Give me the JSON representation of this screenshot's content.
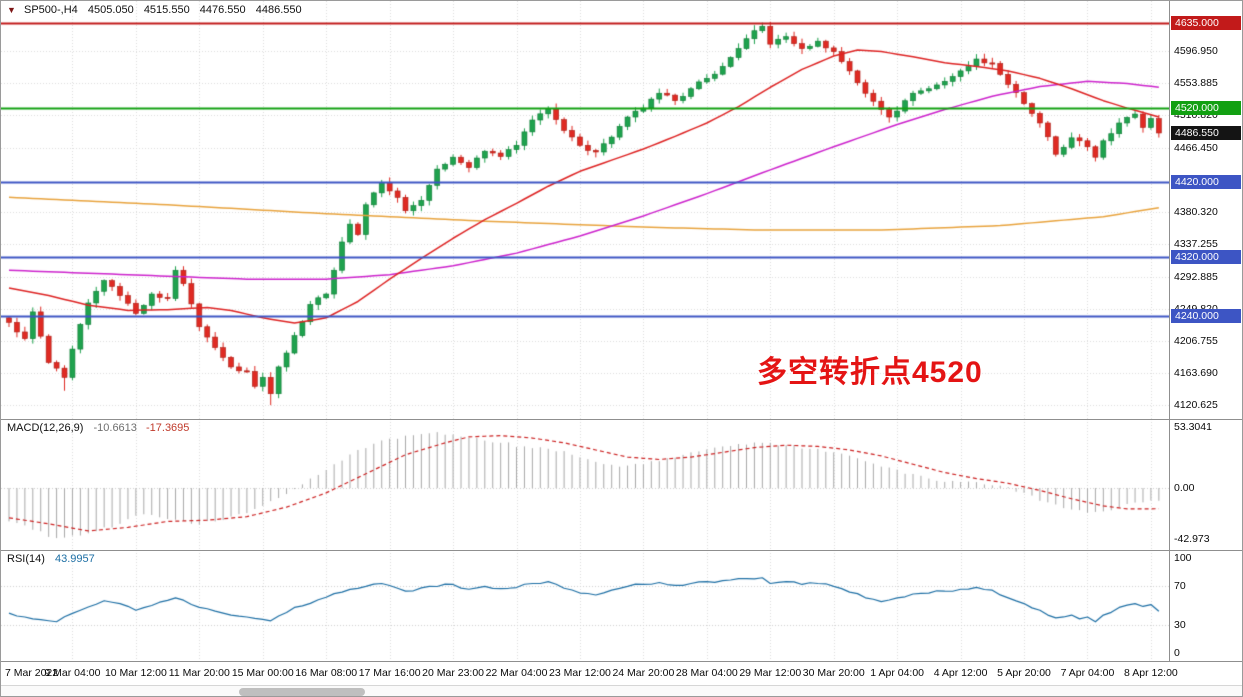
{
  "header": {
    "collapse_icon": "▼",
    "symbol": "SP500-,H4",
    "open": "4505.050",
    "high": "4515.550",
    "low": "4476.550",
    "close": "4486.550"
  },
  "time_axis": {
    "labels": [
      "7 Mar 2022",
      "9 Mar 04:00",
      "10 Mar 12:00",
      "11 Mar 20:00",
      "15 Mar 00:00",
      "16 Mar 08:00",
      "17 Mar 16:00",
      "20 Mar 23:00",
      "22 Mar 04:00",
      "23 Mar 12:00",
      "24 Mar 20:00",
      "28 Mar 04:00",
      "29 Mar 12:00",
      "30 Mar 20:00",
      "1 Apr 04:00",
      "4 Apr 12:00",
      "5 Apr 20:00",
      "7 Apr 04:00",
      "8 Apr 12:00"
    ],
    "bars_per_label": 8
  },
  "chart_data": [
    {
      "type": "candlestick",
      "title": "SP500-,H4",
      "timeframe": "H4",
      "n_bars": 146,
      "ylim": [
        4102,
        4664
      ],
      "y_ticks": [
        4596.95,
        4553.885,
        4510.82,
        4466.45,
        4380.32,
        4337.255,
        4292.885,
        4249.82,
        4206.755,
        4163.69,
        4120.625
      ],
      "price_badges": [
        {
          "value": 4635.0,
          "color": "#c21a1a",
          "line": true,
          "current": false
        },
        {
          "value": 4520.0,
          "color": "#12a012",
          "line": true,
          "current": false
        },
        {
          "value": 4486.55,
          "color": "#141414",
          "line": false,
          "current": true
        },
        {
          "value": 4420.0,
          "color": "#3d55c4",
          "line": true,
          "current": false
        },
        {
          "value": 4320.0,
          "color": "#3d55c4",
          "line": true,
          "current": false
        },
        {
          "value": 4240.0,
          "color": "#3d55c4",
          "line": true,
          "current": false
        }
      ],
      "last_price": 4486.55,
      "colors": {
        "up": "#1fa24e",
        "down": "#df2a23",
        "up_edge": "#0e7a34",
        "down_edge": "#a81f17"
      },
      "close_anchors": [
        [
          0,
          4232
        ],
        [
          2,
          4210
        ],
        [
          3,
          4246
        ],
        [
          5,
          4178
        ],
        [
          7,
          4158
        ],
        [
          8,
          4196
        ],
        [
          10,
          4258
        ],
        [
          12,
          4288
        ],
        [
          14,
          4268
        ],
        [
          16,
          4244
        ],
        [
          18,
          4270
        ],
        [
          20,
          4264
        ],
        [
          21,
          4302
        ],
        [
          22,
          4284
        ],
        [
          24,
          4226
        ],
        [
          26,
          4198
        ],
        [
          28,
          4172
        ],
        [
          30,
          4166
        ],
        [
          31,
          4146
        ],
        [
          32,
          4158
        ],
        [
          33,
          4136
        ],
        [
          34,
          4172
        ],
        [
          36,
          4214
        ],
        [
          38,
          4256
        ],
        [
          40,
          4270
        ],
        [
          41,
          4302
        ],
        [
          42,
          4340
        ],
        [
          43,
          4364
        ],
        [
          44,
          4350
        ],
        [
          45,
          4390
        ],
        [
          46,
          4406
        ],
        [
          47,
          4420
        ],
        [
          49,
          4400
        ],
        [
          50,
          4382
        ],
        [
          52,
          4396
        ],
        [
          54,
          4438
        ],
        [
          56,
          4454
        ],
        [
          58,
          4440
        ],
        [
          60,
          4462
        ],
        [
          62,
          4455
        ],
        [
          64,
          4470
        ],
        [
          66,
          4504
        ],
        [
          68,
          4519
        ],
        [
          70,
          4490
        ],
        [
          72,
          4470
        ],
        [
          74,
          4461
        ],
        [
          76,
          4481
        ],
        [
          78,
          4508
        ],
        [
          80,
          4520
        ],
        [
          82,
          4540
        ],
        [
          84,
          4530
        ],
        [
          86,
          4546
        ],
        [
          88,
          4560
        ],
        [
          90,
          4576
        ],
        [
          92,
          4600
        ],
        [
          94,
          4624
        ],
        [
          95,
          4630
        ],
        [
          96,
          4606
        ],
        [
          98,
          4616
        ],
        [
          100,
          4600
        ],
        [
          102,
          4610
        ],
        [
          104,
          4596
        ],
        [
          106,
          4570
        ],
        [
          108,
          4540
        ],
        [
          110,
          4518
        ],
        [
          111,
          4508
        ],
        [
          112,
          4516
        ],
        [
          114,
          4540
        ],
        [
          116,
          4546
        ],
        [
          118,
          4556
        ],
        [
          120,
          4570
        ],
        [
          122,
          4586
        ],
        [
          124,
          4580
        ],
        [
          126,
          4552
        ],
        [
          128,
          4526
        ],
        [
          130,
          4500
        ],
        [
          132,
          4458
        ],
        [
          134,
          4480
        ],
        [
          136,
          4468
        ],
        [
          137,
          4454
        ],
        [
          138,
          4476
        ],
        [
          140,
          4500
        ],
        [
          142,
          4512
        ],
        [
          143,
          4494
        ],
        [
          144,
          4506
        ],
        [
          145,
          4486.55
        ]
      ],
      "wick_overrides": {
        "7": {
          "low": 4140
        },
        "33": {
          "low": 4120.6
        },
        "95": {
          "high": 4635
        }
      },
      "moving_averages": [
        {
          "name": "ma-slow",
          "color": "#e8a33d",
          "anchors": [
            [
              0,
              4400
            ],
            [
              20,
              4390
            ],
            [
              40,
              4378
            ],
            [
              60,
              4368
            ],
            [
              80,
              4360
            ],
            [
              95,
              4356
            ],
            [
              110,
              4356
            ],
            [
              125,
              4362
            ],
            [
              138,
              4374
            ],
            [
              145,
              4386
            ]
          ]
        },
        {
          "name": "ma-medium",
          "color": "#cc22cc",
          "anchors": [
            [
              0,
              4302
            ],
            [
              15,
              4296
            ],
            [
              30,
              4290
            ],
            [
              40,
              4290
            ],
            [
              48,
              4296
            ],
            [
              56,
              4308
            ],
            [
              64,
              4325
            ],
            [
              72,
              4348
            ],
            [
              80,
              4375
            ],
            [
              88,
              4405
            ],
            [
              96,
              4437
            ],
            [
              104,
              4468
            ],
            [
              112,
              4498
            ],
            [
              118,
              4518
            ],
            [
              124,
              4536
            ],
            [
              130,
              4549
            ],
            [
              136,
              4556
            ],
            [
              141,
              4553
            ],
            [
              145,
              4548
            ]
          ]
        },
        {
          "name": "ma-fast",
          "color": "#dd2222",
          "anchors": [
            [
              0,
              4278
            ],
            [
              5,
              4268
            ],
            [
              10,
              4255
            ],
            [
              15,
              4248
            ],
            [
              20,
              4249
            ],
            [
              25,
              4252
            ],
            [
              28,
              4248
            ],
            [
              32,
              4238
            ],
            [
              36,
              4231
            ],
            [
              40,
              4238
            ],
            [
              44,
              4260
            ],
            [
              48,
              4290
            ],
            [
              52,
              4318
            ],
            [
              56,
              4345
            ],
            [
              60,
              4370
            ],
            [
              64,
              4392
            ],
            [
              68,
              4415
            ],
            [
              72,
              4435
            ],
            [
              76,
              4450
            ],
            [
              80,
              4465
            ],
            [
              84,
              4482
            ],
            [
              88,
              4500
            ],
            [
              92,
              4522
            ],
            [
              96,
              4548
            ],
            [
              100,
              4572
            ],
            [
              104,
              4590
            ],
            [
              107,
              4598
            ],
            [
              110,
              4596
            ],
            [
              114,
              4589
            ],
            [
              118,
              4581
            ],
            [
              122,
              4576
            ],
            [
              126,
              4570
            ],
            [
              130,
              4560
            ],
            [
              134,
              4546
            ],
            [
              138,
              4530
            ],
            [
              141,
              4520
            ],
            [
              145,
              4508
            ]
          ]
        }
      ],
      "annotation": {
        "text": "多空转折点4520",
        "color": "#e41414"
      }
    },
    {
      "type": "macd",
      "label": "MACD(12,26,9)",
      "values_text": {
        "main": "-10.6613",
        "signal": "-17.3695"
      },
      "ylim": [
        -52,
        58
      ],
      "axis_labels": [
        "53.3041",
        "0.00",
        "-42.973"
      ],
      "colors": {
        "histogram": "#a8a8a8",
        "signal": "#cc2222"
      },
      "histogram_anchors": [
        [
          0,
          -28
        ],
        [
          3,
          -35
        ],
        [
          6,
          -42
        ],
        [
          10,
          -38
        ],
        [
          14,
          -30
        ],
        [
          17,
          -22
        ],
        [
          20,
          -26
        ],
        [
          23,
          -30
        ],
        [
          26,
          -28
        ],
        [
          29,
          -22
        ],
        [
          32,
          -15
        ],
        [
          35,
          -5
        ],
        [
          38,
          8
        ],
        [
          41,
          20
        ],
        [
          44,
          32
        ],
        [
          47,
          40
        ],
        [
          50,
          44
        ],
        [
          53,
          46
        ],
        [
          56,
          45
        ],
        [
          59,
          42
        ],
        [
          62,
          38
        ],
        [
          65,
          35
        ],
        [
          68,
          33
        ],
        [
          71,
          28
        ],
        [
          74,
          22
        ],
        [
          77,
          18
        ],
        [
          80,
          20
        ],
        [
          83,
          25
        ],
        [
          86,
          30
        ],
        [
          89,
          34
        ],
        [
          92,
          37
        ],
        [
          95,
          38
        ],
        [
          98,
          36
        ],
        [
          101,
          33
        ],
        [
          104,
          30
        ],
        [
          107,
          25
        ],
        [
          110,
          18
        ],
        [
          113,
          12
        ],
        [
          116,
          8
        ],
        [
          119,
          6
        ],
        [
          122,
          5
        ],
        [
          125,
          2
        ],
        [
          128,
          -4
        ],
        [
          131,
          -12
        ],
        [
          134,
          -18
        ],
        [
          137,
          -20
        ],
        [
          140,
          -16
        ],
        [
          143,
          -12
        ],
        [
          145,
          -10.66
        ]
      ],
      "signal_anchors": [
        [
          0,
          -25
        ],
        [
          5,
          -30
        ],
        [
          10,
          -36
        ],
        [
          15,
          -33
        ],
        [
          20,
          -28
        ],
        [
          25,
          -27
        ],
        [
          30,
          -24
        ],
        [
          35,
          -16
        ],
        [
          40,
          -4
        ],
        [
          45,
          12
        ],
        [
          50,
          28
        ],
        [
          55,
          38
        ],
        [
          58,
          43
        ],
        [
          62,
          44
        ],
        [
          66,
          42
        ],
        [
          70,
          38
        ],
        [
          74,
          32
        ],
        [
          78,
          26
        ],
        [
          82,
          24
        ],
        [
          86,
          26
        ],
        [
          90,
          30
        ],
        [
          94,
          34
        ],
        [
          98,
          36
        ],
        [
          102,
          35
        ],
        [
          106,
          32
        ],
        [
          110,
          27
        ],
        [
          114,
          20
        ],
        [
          118,
          13
        ],
        [
          122,
          8
        ],
        [
          126,
          4
        ],
        [
          130,
          -2
        ],
        [
          134,
          -9
        ],
        [
          138,
          -15
        ],
        [
          141,
          -17.5
        ],
        [
          145,
          -17.37
        ]
      ]
    },
    {
      "type": "rsi",
      "label": "RSI(14)",
      "value_text": "43.9957",
      "ylim": [
        -8,
        108
      ],
      "axis_labels": [
        "100",
        "70",
        "30",
        "0"
      ],
      "levels": [
        70,
        30
      ],
      "color": "#1c6ea4",
      "line_anchors": [
        [
          0,
          42
        ],
        [
          3,
          36
        ],
        [
          6,
          33
        ],
        [
          9,
          45
        ],
        [
          12,
          55
        ],
        [
          14,
          52
        ],
        [
          16,
          45
        ],
        [
          18,
          50
        ],
        [
          21,
          58
        ],
        [
          24,
          48
        ],
        [
          27,
          42
        ],
        [
          30,
          38
        ],
        [
          33,
          34
        ],
        [
          36,
          48
        ],
        [
          39,
          56
        ],
        [
          42,
          64
        ],
        [
          45,
          70
        ],
        [
          47,
          73
        ],
        [
          50,
          65
        ],
        [
          53,
          70
        ],
        [
          56,
          72
        ],
        [
          58,
          67
        ],
        [
          60,
          70
        ],
        [
          63,
          68
        ],
        [
          66,
          73
        ],
        [
          68,
          75
        ],
        [
          70,
          68
        ],
        [
          72,
          63
        ],
        [
          74,
          61
        ],
        [
          76,
          66
        ],
        [
          78,
          70
        ],
        [
          80,
          72
        ],
        [
          82,
          74
        ],
        [
          84,
          71
        ],
        [
          86,
          73
        ],
        [
          88,
          75
        ],
        [
          90,
          76
        ],
        [
          93,
          78
        ],
        [
          95,
          79
        ],
        [
          96,
          73
        ],
        [
          98,
          75
        ],
        [
          100,
          72
        ],
        [
          102,
          73
        ],
        [
          104,
          70
        ],
        [
          106,
          64
        ],
        [
          108,
          58
        ],
        [
          110,
          54
        ],
        [
          112,
          58
        ],
        [
          114,
          62
        ],
        [
          116,
          63
        ],
        [
          118,
          65
        ],
        [
          120,
          67
        ],
        [
          122,
          69
        ],
        [
          124,
          66
        ],
        [
          126,
          58
        ],
        [
          128,
          52
        ],
        [
          130,
          45
        ],
        [
          132,
          37
        ],
        [
          134,
          40
        ],
        [
          135,
          36
        ],
        [
          136,
          38
        ],
        [
          137,
          33
        ],
        [
          138,
          40
        ],
        [
          140,
          48
        ],
        [
          142,
          52
        ],
        [
          143,
          49
        ],
        [
          144,
          51
        ],
        [
          145,
          43.9957
        ]
      ]
    }
  ]
}
